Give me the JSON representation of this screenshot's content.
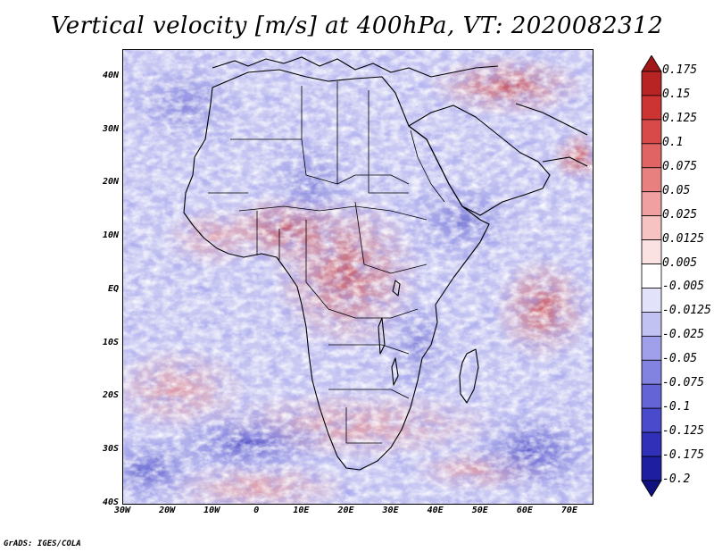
{
  "title": "Vertical velocity [m/s] at 400hPa, VT: 2020082312",
  "credit": "GrADS: IGES/COLA",
  "map": {
    "variable": "Vertical velocity",
    "units": "m/s",
    "level": "400hPa",
    "valid_time": "2020082312",
    "lon_range": [
      -30,
      75
    ],
    "lat_range": [
      -40,
      45
    ],
    "lat_labels": [
      "40N",
      "30N",
      "20N",
      "10N",
      "EQ",
      "10S",
      "20S",
      "30S",
      "40S"
    ],
    "lat_values": [
      40,
      30,
      20,
      10,
      0,
      -10,
      -20,
      -30,
      -40
    ],
    "lon_labels": [
      "30W",
      "20W",
      "10W",
      "0",
      "10E",
      "20E",
      "30E",
      "40E",
      "50E",
      "60E",
      "70E"
    ],
    "lon_values": [
      -30,
      -20,
      -10,
      0,
      10,
      20,
      30,
      40,
      50,
      60,
      70
    ]
  },
  "colorbar": {
    "labels": [
      "0.175",
      "0.15",
      "0.125",
      "0.1",
      "0.075",
      "0.05",
      "0.025",
      "0.0125",
      "0.005",
      "-0.005",
      "-0.0125",
      "-0.025",
      "-0.05",
      "-0.075",
      "-0.1",
      "-0.125",
      "-0.175",
      "-0.2"
    ],
    "colors": [
      "#a01818",
      "#b82424",
      "#cc3434",
      "#d84a4a",
      "#e06464",
      "#e88080",
      "#f0a0a0",
      "#f6c2c2",
      "#fbe2e2",
      "#ffffff",
      "#e2e2fb",
      "#c2c2f2",
      "#a0a0ea",
      "#8282e0",
      "#6464d6",
      "#4a4acc",
      "#3030b8",
      "#1e1ea0",
      "#101080"
    ]
  }
}
